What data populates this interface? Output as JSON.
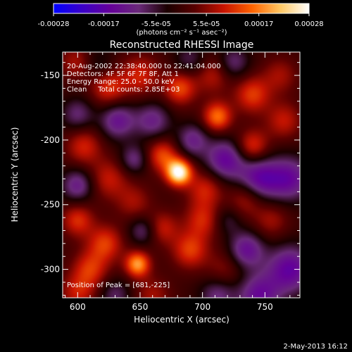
{
  "colorbar": {
    "ticks": [
      "-0.00028",
      "-0.00017",
      "-5.5e-05",
      "5.5e-05",
      "0.00017",
      "0.00028"
    ],
    "tick_values": [
      -0.00028,
      -0.00017,
      -5.5e-05,
      5.5e-05,
      0.00017,
      0.00028
    ],
    "range": [
      -0.00028,
      0.00028
    ],
    "unit_label": "(photons cm⁻² s⁻¹ asec⁻²)",
    "stops": [
      "#0000ff",
      "#3a00c8",
      "#650098",
      "#6a2a7a",
      "#1a0000",
      "#5a0000",
      "#c81400",
      "#ff6400",
      "#ffc864",
      "#ffffff"
    ]
  },
  "chart_data": {
    "type": "heatmap",
    "title": "Reconstructed RHESSI Image",
    "xlabel": "Heliocentric X (arcsec)",
    "ylabel": "Heliocentric Y (arcsec)",
    "xlim": [
      588,
      778
    ],
    "ylim": [
      -322,
      -132
    ],
    "x_ticks": [
      600,
      650,
      700,
      750
    ],
    "y_ticks": [
      -150,
      -200,
      -250,
      -300
    ],
    "grid": false,
    "annotations": [
      "20-Aug-2002 22:38:40.000 to 22:41:04.000",
      "Detectors: 4F 5F 6F 7F 8F, Att 1",
      "Energy Range: 25.0 - 50.0 keV",
      "Clean     Total counts: 2.85E+03"
    ],
    "peak_label": "Position of Peak = [681,-225]",
    "peak": [
      681,
      -225
    ],
    "sources": [
      {
        "x": 681,
        "y": -225,
        "v": 0.00028,
        "s": 7
      },
      {
        "x": 702,
        "y": -238,
        "v": 0.0001,
        "s": 10
      },
      {
        "x": 668,
        "y": -212,
        "v": 0.00013,
        "s": 9
      },
      {
        "x": 648,
        "y": -296,
        "v": 0.00019,
        "s": 7
      },
      {
        "x": 622,
        "y": -280,
        "v": 0.00012,
        "s": 10
      },
      {
        "x": 610,
        "y": -300,
        "v": 0.00011,
        "s": 10
      },
      {
        "x": 600,
        "y": -262,
        "v": 0.00011,
        "s": 9
      },
      {
        "x": 625,
        "y": -230,
        "v": 9e-05,
        "s": 11
      },
      {
        "x": 605,
        "y": -205,
        "v": 0.0001,
        "s": 10
      },
      {
        "x": 625,
        "y": -160,
        "v": 0.00011,
        "s": 10
      },
      {
        "x": 600,
        "y": -140,
        "v": 8e-05,
        "s": 10
      },
      {
        "x": 650,
        "y": -150,
        "v": 0.0001,
        "s": 11
      },
      {
        "x": 682,
        "y": -160,
        "v": 0.00013,
        "s": 9
      },
      {
        "x": 708,
        "y": -150,
        "v": 8e-05,
        "s": 10
      },
      {
        "x": 712,
        "y": -182,
        "v": 0.00016,
        "s": 8
      },
      {
        "x": 740,
        "y": -165,
        "v": 0.00012,
        "s": 10
      },
      {
        "x": 740,
        "y": -205,
        "v": 0.00012,
        "s": 9
      },
      {
        "x": 765,
        "y": -185,
        "v": 9e-05,
        "s": 10
      },
      {
        "x": 762,
        "y": -150,
        "v": 7e-05,
        "s": 10
      },
      {
        "x": 735,
        "y": -245,
        "v": 9e-05,
        "s": 10
      },
      {
        "x": 755,
        "y": -262,
        "v": 7e-05,
        "s": 10
      },
      {
        "x": 700,
        "y": -262,
        "v": 0.0001,
        "s": 10
      },
      {
        "x": 690,
        "y": -285,
        "v": 0.00012,
        "s": 10
      },
      {
        "x": 668,
        "y": -268,
        "v": 9e-05,
        "s": 9
      },
      {
        "x": 645,
        "y": -248,
        "v": 7e-05,
        "s": 10
      },
      {
        "x": 600,
        "y": -318,
        "v": 9e-05,
        "s": 10
      },
      {
        "x": 660,
        "y": -320,
        "v": 7e-05,
        "s": 10
      },
      {
        "x": 718,
        "y": -300,
        "v": 6e-05,
        "s": 11
      },
      {
        "x": 632,
        "y": -185,
        "v": -0.00013,
        "s": 10
      },
      {
        "x": 660,
        "y": -185,
        "v": -0.00011,
        "s": 10
      },
      {
        "x": 692,
        "y": -200,
        "v": -0.00011,
        "s": 9
      },
      {
        "x": 718,
        "y": -215,
        "v": -0.00015,
        "s": 11
      },
      {
        "x": 745,
        "y": -230,
        "v": -0.00016,
        "s": 12
      },
      {
        "x": 770,
        "y": -230,
        "v": -0.00014,
        "s": 12
      },
      {
        "x": 770,
        "y": -300,
        "v": -0.00016,
        "s": 13
      },
      {
        "x": 745,
        "y": -320,
        "v": -0.00014,
        "s": 12
      },
      {
        "x": 735,
        "y": -285,
        "v": -0.00014,
        "s": 10
      },
      {
        "x": 712,
        "y": -320,
        "v": -0.0001,
        "s": 10
      },
      {
        "x": 600,
        "y": -180,
        "v": -9e-05,
        "s": 9
      },
      {
        "x": 600,
        "y": -235,
        "v": -0.00012,
        "s": 9
      },
      {
        "x": 645,
        "y": -215,
        "v": -0.0001,
        "s": 8
      },
      {
        "x": 652,
        "y": -270,
        "v": -9e-05,
        "s": 8
      },
      {
        "x": 630,
        "y": -320,
        "v": -8e-05,
        "s": 9
      },
      {
        "x": 725,
        "y": -140,
        "v": -9e-05,
        "s": 9
      },
      {
        "x": 690,
        "y": -138,
        "v": -7e-05,
        "s": 9
      },
      {
        "x": 720,
        "y": -262,
        "v": -6e-05,
        "s": 8
      },
      {
        "x": 615,
        "y": -140,
        "v": -6e-05,
        "s": 9
      }
    ]
  },
  "footer": {
    "date": "2-May-2013 16:12"
  }
}
